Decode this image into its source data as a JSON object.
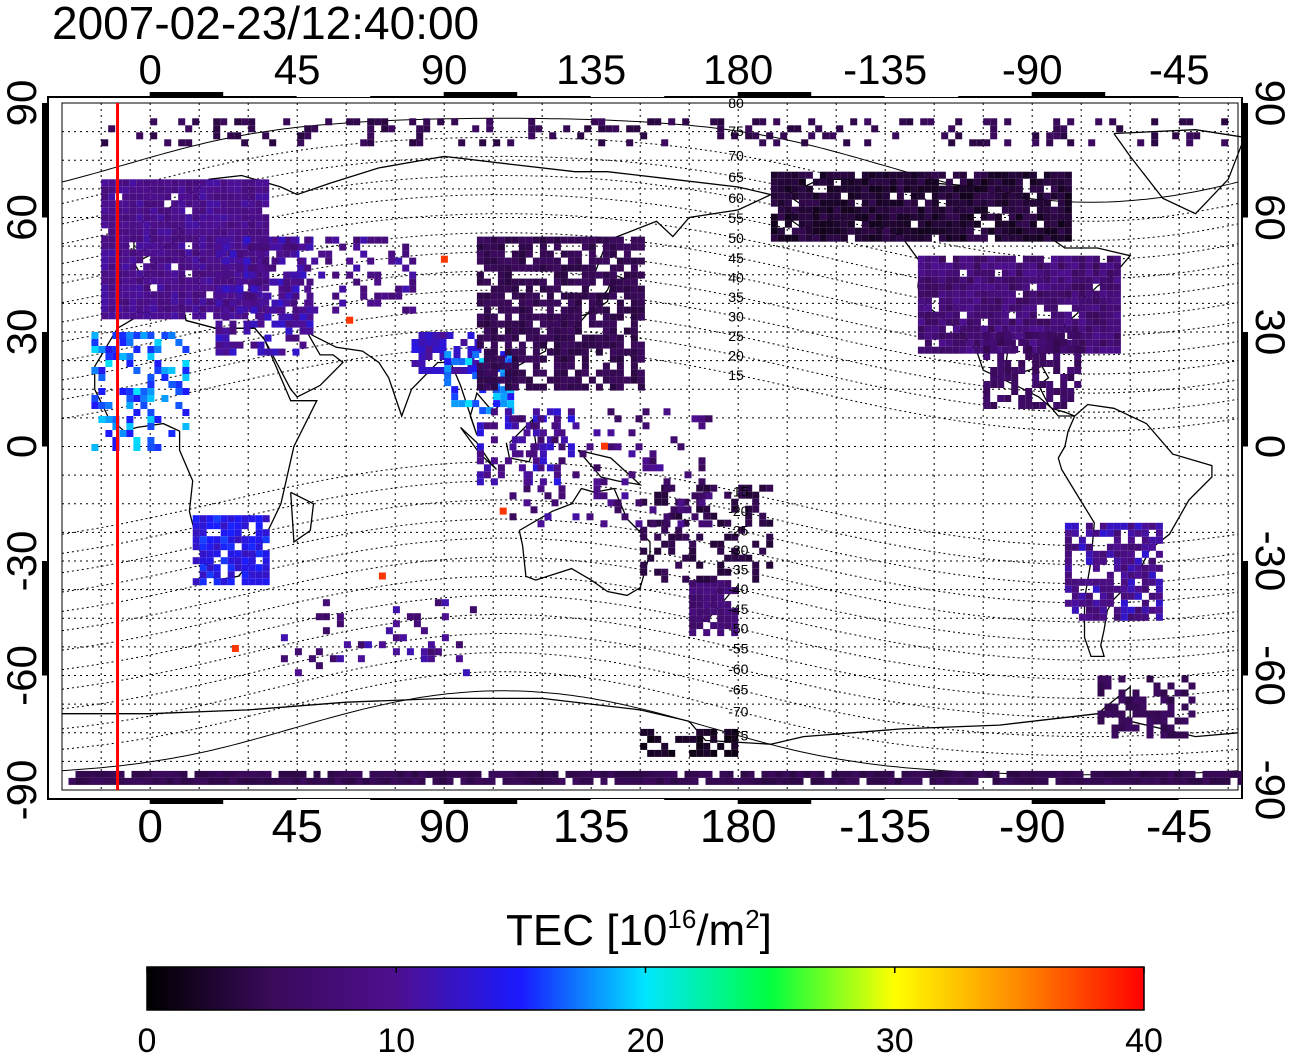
{
  "title": "2007-02-23/12:40:00",
  "map": {
    "lon_range": [
      -27,
      333
    ],
    "lat_range": [
      -90,
      90
    ],
    "top_ticks": [
      "0",
      "45",
      "90",
      "135",
      "180",
      "-135",
      "-90",
      "-45"
    ],
    "bottom_ticks": [
      "0",
      "45",
      "90",
      "135",
      "180",
      "-135",
      "-90",
      "-45"
    ],
    "left_ticks": [
      "90",
      "60",
      "30",
      "0",
      "-30",
      "-60",
      "-90"
    ],
    "right_ticks": [
      "90",
      "60",
      "30",
      "0",
      "-30",
      "-60",
      "-90"
    ],
    "tick_lon_values": [
      0,
      45,
      90,
      135,
      180,
      225,
      270,
      315
    ],
    "tick_lat_values": [
      90,
      60,
      30,
      0,
      -30,
      -60,
      -90
    ],
    "contour_labels": [
      "80",
      "75",
      "70",
      "65",
      "60",
      "55",
      "50",
      "45",
      "40",
      "35",
      "30",
      "25",
      "20",
      "15",
      "-15",
      "-20",
      "-25",
      "-30",
      "-35",
      "-40",
      "-45",
      "-50",
      "-55",
      "-60",
      "-65",
      "-70",
      "-75"
    ],
    "terminator_lon": -10,
    "terminator_color": "#ff0000"
  },
  "colorbar": {
    "label_main": "TEC  [10",
    "label_exp1": "16",
    "label_mid": "/m",
    "label_exp2": "2",
    "label_end": "]",
    "ticks": [
      "0",
      "10",
      "20",
      "30",
      "40"
    ],
    "range": [
      0,
      40
    ],
    "stops": [
      "#000000",
      "#3a0a5a",
      "#4e0f90",
      "#1a1aff",
      "#00e6ff",
      "#00ff40",
      "#ffff00",
      "#ff8800",
      "#ff0000"
    ]
  }
}
